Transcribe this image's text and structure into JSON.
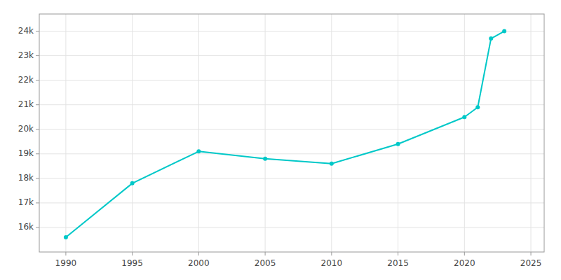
{
  "chart_data": {
    "type": "line",
    "x": [
      1990,
      1995,
      2000,
      2005,
      2010,
      2015,
      2020,
      2021,
      2022,
      2023
    ],
    "values": [
      15600,
      17800,
      19100,
      18800,
      18600,
      19400,
      20500,
      20900,
      23700,
      24000
    ],
    "color": "#00C8C8",
    "marker": "circle",
    "xlim": [
      1988,
      2026
    ],
    "ylim": [
      15000,
      24700
    ],
    "xticks": [
      1990,
      1995,
      2000,
      2005,
      2010,
      2015,
      2020,
      2025
    ],
    "yticks": [
      {
        "value": 16000,
        "label": "16k"
      },
      {
        "value": 17000,
        "label": "17k"
      },
      {
        "value": 18000,
        "label": "18k"
      },
      {
        "value": 19000,
        "label": "19k"
      },
      {
        "value": 20000,
        "label": "20k"
      },
      {
        "value": 21000,
        "label": "21k"
      },
      {
        "value": 22000,
        "label": "22k"
      },
      {
        "value": 23000,
        "label": "23k"
      },
      {
        "value": 24000,
        "label": "24k"
      }
    ],
    "grid": true
  }
}
